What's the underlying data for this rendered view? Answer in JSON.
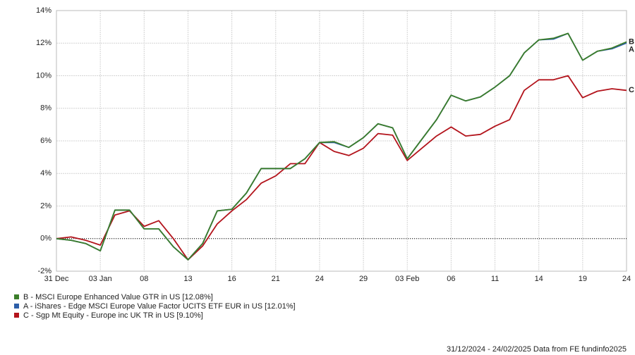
{
  "chart_data": {
    "type": "line",
    "categories": [
      "31 Dec",
      null,
      null,
      "03 Jan",
      null,
      null,
      "08",
      null,
      null,
      "13",
      null,
      null,
      "16",
      null,
      null,
      "21",
      null,
      null,
      "24",
      null,
      null,
      "29",
      null,
      null,
      "03 Feb",
      null,
      null,
      "06",
      null,
      null,
      "11",
      null,
      null,
      "14",
      null,
      null,
      "19",
      null,
      null,
      "24"
    ],
    "ylim": [
      -2,
      14
    ],
    "yticks": [
      {
        "value": -2,
        "label": "-2%"
      },
      {
        "value": 0,
        "label": "0%"
      },
      {
        "value": 2,
        "label": "2%"
      },
      {
        "value": 4,
        "label": "4%"
      },
      {
        "value": 6,
        "label": "6%"
      },
      {
        "value": 8,
        "label": "8%"
      },
      {
        "value": 10,
        "label": "10%"
      },
      {
        "value": 12,
        "label": "12%"
      },
      {
        "value": 14,
        "label": "14%"
      }
    ],
    "grid": true,
    "series": [
      {
        "name": "B - MSCI Europe Enhanced Value GTR in US [12.08%]",
        "tag": "B",
        "color": "#3b7d2a",
        "values": [
          0,
          -0.1,
          -0.3,
          -0.75,
          1.75,
          1.75,
          0.6,
          0.6,
          -0.5,
          -1.3,
          -0.3,
          1.7,
          1.8,
          2.8,
          4.3,
          4.3,
          4.3,
          4.9,
          5.9,
          5.95,
          5.6,
          6.2,
          7.05,
          6.8,
          4.9,
          6.1,
          7.3,
          8.8,
          8.45,
          8.7,
          9.3,
          10.0,
          11.4,
          12.2,
          12.3,
          12.6,
          10.95,
          11.5,
          11.7,
          12.08
        ]
      },
      {
        "name": "A - iShares - Edge MSCI Europe Value Factor UCITS ETF EUR in US [12.01%]",
        "tag": "A",
        "color": "#2d5ea8",
        "values": [
          0,
          -0.1,
          -0.3,
          -0.75,
          1.75,
          1.75,
          0.6,
          0.6,
          -0.5,
          -1.3,
          -0.3,
          1.7,
          1.8,
          2.8,
          4.3,
          4.3,
          4.3,
          4.9,
          5.9,
          5.9,
          5.6,
          6.2,
          7.05,
          6.8,
          4.9,
          6.1,
          7.3,
          8.8,
          8.45,
          8.7,
          9.3,
          10.0,
          11.4,
          12.2,
          12.25,
          12.6,
          10.95,
          11.5,
          11.65,
          12.01
        ]
      },
      {
        "name": "C - Sgp Mt Equity - Europe inc UK TR in US [9.10%]",
        "tag": "C",
        "color": "#b3141c",
        "values": [
          0,
          0.1,
          -0.1,
          -0.4,
          1.45,
          1.7,
          0.75,
          1.1,
          0,
          -1.3,
          -0.45,
          0.9,
          1.7,
          2.4,
          3.4,
          3.85,
          4.6,
          4.6,
          5.9,
          5.35,
          5.1,
          5.55,
          6.45,
          6.35,
          4.8,
          5.55,
          6.3,
          6.85,
          6.3,
          6.4,
          6.9,
          7.3,
          9.1,
          9.75,
          9.75,
          10.0,
          8.65,
          9.05,
          9.2,
          9.1
        ]
      }
    ],
    "footer": "31/12/2024 - 24/02/2025 Data from FE fundinfo2025"
  }
}
